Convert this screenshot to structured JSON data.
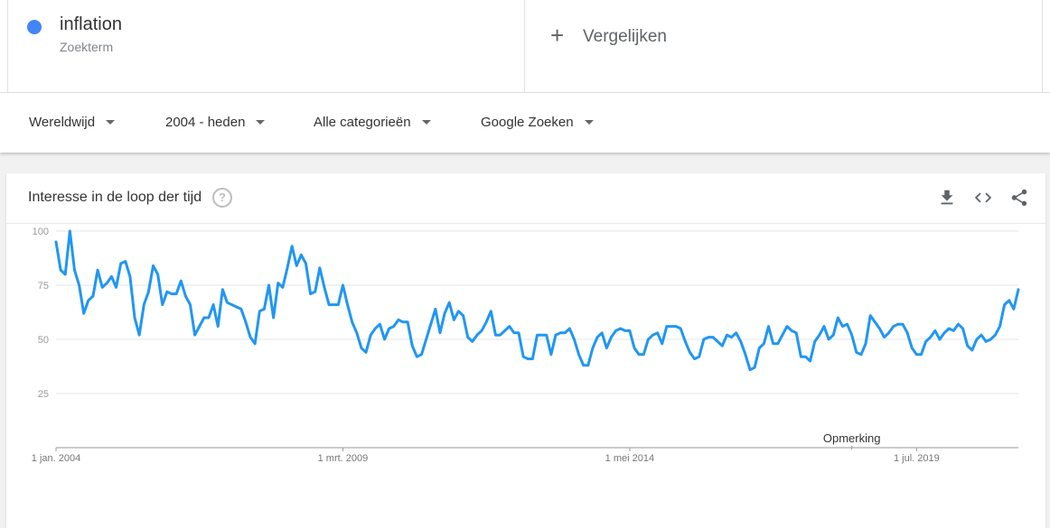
{
  "term": {
    "name": "inflation",
    "type": "Zoekterm",
    "color": "#4285f4"
  },
  "compare": {
    "label": "Vergelijken"
  },
  "filters": {
    "region": "Wereldwijd",
    "period": "2004 - heden",
    "category": "Alle categorieën",
    "source": "Google Zoeken"
  },
  "card": {
    "title": "Interesse in de loop der tijd",
    "icons": [
      "help-icon",
      "download-icon",
      "embed-code-icon",
      "share-icon"
    ]
  },
  "chart_data": {
    "type": "line",
    "ylim": [
      0,
      100
    ],
    "yticks": [
      "25",
      "50",
      "75",
      "100"
    ],
    "xticks": [
      {
        "label": "1 jan. 2004",
        "index": 0
      },
      {
        "label": "1 mrt. 2009",
        "index": 62
      },
      {
        "label": "1 mei 2014",
        "index": 124
      },
      {
        "label": "1 jul. 2019",
        "index": 186
      }
    ],
    "annotation": {
      "label": "Opmerking",
      "index": 172
    },
    "grid": true,
    "line_color": "#2196f3",
    "series": [
      {
        "values": [
          95,
          82,
          80,
          100,
          82,
          75,
          62,
          68,
          70,
          82,
          74,
          76,
          79,
          74,
          85,
          86,
          79,
          60,
          52,
          66,
          72,
          84,
          80,
          66,
          72,
          71,
          71,
          77,
          70,
          66,
          52,
          56,
          60,
          60,
          66,
          56,
          73,
          67,
          66,
          65,
          64,
          58,
          51,
          48,
          63,
          64,
          75,
          60,
          76,
          74,
          83,
          93,
          84,
          89,
          85,
          71,
          72,
          83,
          74,
          66,
          66,
          66,
          75,
          66,
          58,
          53,
          46,
          44,
          52,
          55,
          57,
          50,
          55,
          56,
          59,
          58,
          58,
          47,
          42,
          43,
          50,
          57,
          64,
          53,
          62,
          67,
          59,
          63,
          61,
          51,
          49,
          52,
          54,
          58,
          63,
          52,
          52,
          54,
          56,
          53,
          53,
          42,
          41,
          41,
          52,
          52,
          52,
          43,
          52,
          53,
          53,
          55,
          50,
          43,
          38,
          38,
          46,
          51,
          53,
          46,
          51,
          54,
          55,
          54,
          54,
          46,
          43,
          43,
          50,
          52,
          53,
          48,
          56,
          56,
          56,
          55,
          49,
          44,
          41,
          42,
          50,
          51,
          51,
          49,
          47,
          52,
          51,
          53,
          49,
          43,
          36,
          37,
          46,
          48,
          56,
          48,
          48,
          52,
          56,
          54,
          53,
          42,
          42,
          40,
          49,
          52,
          56,
          50,
          52,
          60,
          56,
          57,
          52,
          44,
          43,
          48,
          61,
          58,
          55,
          51,
          53,
          56,
          57,
          57,
          53,
          46,
          43,
          43,
          49,
          51,
          54,
          50,
          53,
          55,
          54,
          57,
          55,
          47,
          45,
          50,
          52,
          49,
          50,
          52,
          56,
          66,
          68,
          64,
          73
        ]
      }
    ]
  }
}
